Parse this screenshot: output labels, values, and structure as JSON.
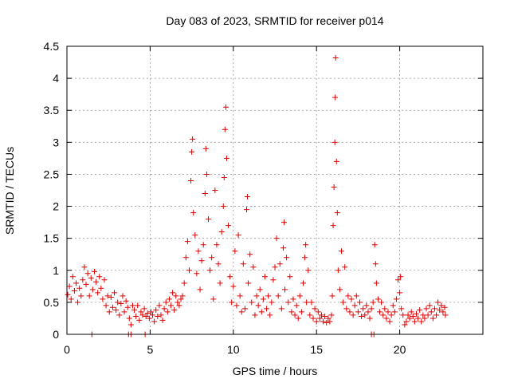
{
  "chart_data": {
    "type": "scatter",
    "title": "Day 083 of 2023, SRMTID for receiver p014",
    "xlabel": "GPS time / hours",
    "ylabel": "SRMTID / TECUs",
    "xlim": [
      0,
      25
    ],
    "ylim": [
      0,
      4.5
    ],
    "xticks": [
      0,
      5,
      10,
      15,
      20
    ],
    "yticks": [
      0,
      0.5,
      1,
      1.5,
      2,
      2.5,
      3,
      3.5,
      4,
      4.5
    ],
    "xtick_labels": [
      "0",
      "5",
      "10",
      "15",
      "20"
    ],
    "ytick_labels": [
      "0",
      "0.5",
      "1",
      "1.5",
      "2",
      "2.5",
      "3",
      "3.5",
      "4",
      "4.5"
    ],
    "grid": true,
    "marker": "+",
    "color": "#e00000",
    "series": [
      {
        "name": "SRMTID",
        "points": [
          [
            0.05,
            0.62
          ],
          [
            0.15,
            0.75
          ],
          [
            0.25,
            0.55
          ],
          [
            0.35,
            0.9
          ],
          [
            0.45,
            0.68
          ],
          [
            0.55,
            0.8
          ],
          [
            0.65,
            0.5
          ],
          [
            0.75,
            0.72
          ],
          [
            0.85,
            0.6
          ],
          [
            0.95,
            0.85
          ],
          [
            1.05,
            1.05
          ],
          [
            1.15,
            0.78
          ],
          [
            1.25,
            0.95
          ],
          [
            1.35,
            0.6
          ],
          [
            1.45,
            0.88
          ],
          [
            1.55,
            0.7
          ],
          [
            1.65,
            0.98
          ],
          [
            1.75,
            0.82
          ],
          [
            1.85,
            0.65
          ],
          [
            1.95,
            0.9
          ],
          [
            2.05,
            0.72
          ],
          [
            2.15,
            0.55
          ],
          [
            2.25,
            0.85
          ],
          [
            2.35,
            0.45
          ],
          [
            2.45,
            0.6
          ],
          [
            2.55,
            0.35
          ],
          [
            2.65,
            0.58
          ],
          [
            2.75,
            0.42
          ],
          [
            2.85,
            0.65
          ],
          [
            2.95,
            0.38
          ],
          [
            3.05,
            0.5
          ],
          [
            3.15,
            0.3
          ],
          [
            3.25,
            0.48
          ],
          [
            3.35,
            0.6
          ],
          [
            3.45,
            0.35
          ],
          [
            3.55,
            0.52
          ],
          [
            3.65,
            0.42
          ],
          [
            3.75,
            0.25
          ],
          [
            3.85,
            0.15
          ],
          [
            3.95,
            0.45
          ],
          [
            4.05,
            0.38
          ],
          [
            4.15,
            0.28
          ],
          [
            4.25,
            0.45
          ],
          [
            4.35,
            0.22
          ],
          [
            4.45,
            0.35
          ],
          [
            4.55,
            0.3
          ],
          [
            4.65,
            0.4
          ],
          [
            4.75,
            0.28
          ],
          [
            4.85,
            0.33
          ],
          [
            4.95,
            0.25
          ],
          [
            5.05,
            0.35
          ],
          [
            5.15,
            0.3
          ],
          [
            5.25,
            0.2
          ],
          [
            5.35,
            0.38
          ],
          [
            5.45,
            0.28
          ],
          [
            5.55,
            0.45
          ],
          [
            5.65,
            0.3
          ],
          [
            5.75,
            0.22
          ],
          [
            5.85,
            0.4
          ],
          [
            5.95,
            0.5
          ],
          [
            6.05,
            0.35
          ],
          [
            6.15,
            0.55
          ],
          [
            6.25,
            0.45
          ],
          [
            6.35,
            0.65
          ],
          [
            6.45,
            0.38
          ],
          [
            6.55,
            0.6
          ],
          [
            6.65,
            0.5
          ],
          [
            6.75,
            0.45
          ],
          [
            6.85,
            0.55
          ],
          [
            6.95,
            0.6
          ],
          [
            7.05,
            0.8
          ],
          [
            7.15,
            1.2
          ],
          [
            7.25,
            1.45
          ],
          [
            7.35,
            1.0
          ],
          [
            7.45,
            2.4
          ],
          [
            7.5,
            2.85
          ],
          [
            7.55,
            3.05
          ],
          [
            7.6,
            1.9
          ],
          [
            7.7,
            1.55
          ],
          [
            7.8,
            0.95
          ],
          [
            7.9,
            1.3
          ],
          [
            8.0,
            0.7
          ],
          [
            8.1,
            1.15
          ],
          [
            8.2,
            1.4
          ],
          [
            8.3,
            2.2
          ],
          [
            8.35,
            2.9
          ],
          [
            8.4,
            2.5
          ],
          [
            8.5,
            1.8
          ],
          [
            8.6,
            1.0
          ],
          [
            8.7,
            1.2
          ],
          [
            8.8,
            0.55
          ],
          [
            8.9,
            2.25
          ],
          [
            9.0,
            1.4
          ],
          [
            9.1,
            1.1
          ],
          [
            9.2,
            0.8
          ],
          [
            9.3,
            1.6
          ],
          [
            9.4,
            2.0
          ],
          [
            9.45,
            2.45
          ],
          [
            9.5,
            3.2
          ],
          [
            9.55,
            3.55
          ],
          [
            9.6,
            2.75
          ],
          [
            9.7,
            1.7
          ],
          [
            9.8,
            0.9
          ],
          [
            9.9,
            0.5
          ],
          [
            10.0,
            0.75
          ],
          [
            10.1,
            1.3
          ],
          [
            10.2,
            0.45
          ],
          [
            10.3,
            1.55
          ],
          [
            10.4,
            0.6
          ],
          [
            10.5,
            0.35
          ],
          [
            10.6,
            1.1
          ],
          [
            10.7,
            0.4
          ],
          [
            10.8,
            1.95
          ],
          [
            10.85,
            2.15
          ],
          [
            10.9,
            0.8
          ],
          [
            11.0,
            1.25
          ],
          [
            11.1,
            0.5
          ],
          [
            11.2,
            1.05
          ],
          [
            11.3,
            0.3
          ],
          [
            11.4,
            0.6
          ],
          [
            11.5,
            0.45
          ],
          [
            11.6,
            0.7
          ],
          [
            11.7,
            0.35
          ],
          [
            11.8,
            0.55
          ],
          [
            11.9,
            0.9
          ],
          [
            12.0,
            0.4
          ],
          [
            12.1,
            0.6
          ],
          [
            12.2,
            0.3
          ],
          [
            12.3,
            0.5
          ],
          [
            12.4,
            0.85
          ],
          [
            12.5,
            1.05
          ],
          [
            12.6,
            1.5
          ],
          [
            12.7,
            0.6
          ],
          [
            12.8,
            1.1
          ],
          [
            12.9,
            0.4
          ],
          [
            13.0,
            1.35
          ],
          [
            13.05,
            1.75
          ],
          [
            13.1,
            0.7
          ],
          [
            13.2,
            1.2
          ],
          [
            13.3,
            0.5
          ],
          [
            13.4,
            0.9
          ],
          [
            13.5,
            0.35
          ],
          [
            13.6,
            0.55
          ],
          [
            13.7,
            0.3
          ],
          [
            13.8,
            0.45
          ],
          [
            13.9,
            0.25
          ],
          [
            14.0,
            0.6
          ],
          [
            14.1,
            0.35
          ],
          [
            14.2,
            0.8
          ],
          [
            14.3,
            1.2
          ],
          [
            14.35,
            1.4
          ],
          [
            14.4,
            0.5
          ],
          [
            14.5,
            1.0
          ],
          [
            14.6,
            0.3
          ],
          [
            14.7,
            0.5
          ],
          [
            14.8,
            0.25
          ],
          [
            14.9,
            0.4
          ],
          [
            15.0,
            0.2
          ],
          [
            15.1,
            0.35
          ],
          [
            15.2,
            0.25
          ],
          [
            15.3,
            0.3
          ],
          [
            15.4,
            0.2
          ],
          [
            15.5,
            0.28
          ],
          [
            15.6,
            0.18
          ],
          [
            15.7,
            0.25
          ],
          [
            15.8,
            0.2
          ],
          [
            15.9,
            0.3
          ],
          [
            15.95,
            0.6
          ],
          [
            16.0,
            1.7
          ],
          [
            16.05,
            2.3
          ],
          [
            16.1,
            3.0
          ],
          [
            16.12,
            3.7
          ],
          [
            16.15,
            4.32
          ],
          [
            16.2,
            2.7
          ],
          [
            16.25,
            1.9
          ],
          [
            16.3,
            1.0
          ],
          [
            16.4,
            0.7
          ],
          [
            16.5,
            1.3
          ],
          [
            16.6,
            0.5
          ],
          [
            16.7,
            1.05
          ],
          [
            16.8,
            0.4
          ],
          [
            16.9,
            0.6
          ],
          [
            17.0,
            0.35
          ],
          [
            17.1,
            0.55
          ],
          [
            17.2,
            0.3
          ],
          [
            17.3,
            0.45
          ],
          [
            17.4,
            0.6
          ],
          [
            17.5,
            0.35
          ],
          [
            17.6,
            0.5
          ],
          [
            17.7,
            0.28
          ],
          [
            17.8,
            0.4
          ],
          [
            17.9,
            0.3
          ],
          [
            18.0,
            0.45
          ],
          [
            18.1,
            0.35
          ],
          [
            18.2,
            0.25
          ],
          [
            18.3,
            0.4
          ],
          [
            18.4,
            0.5
          ],
          [
            18.5,
            1.4
          ],
          [
            18.55,
            1.1
          ],
          [
            18.6,
            0.8
          ],
          [
            18.7,
            0.55
          ],
          [
            18.8,
            0.35
          ],
          [
            18.9,
            0.5
          ],
          [
            19.0,
            0.3
          ],
          [
            19.1,
            0.4
          ],
          [
            19.2,
            0.25
          ],
          [
            19.3,
            0.35
          ],
          [
            19.4,
            0.2
          ],
          [
            19.5,
            0.3
          ],
          [
            19.6,
            0.45
          ],
          [
            19.7,
            0.35
          ],
          [
            19.8,
            0.55
          ],
          [
            19.9,
            0.85
          ],
          [
            20.0,
            0.65
          ],
          [
            20.05,
            0.9
          ],
          [
            20.1,
            0.4
          ],
          [
            20.2,
            0.3
          ],
          [
            20.3,
            0.15
          ],
          [
            20.4,
            0.2
          ],
          [
            20.5,
            0.3
          ],
          [
            20.6,
            0.25
          ],
          [
            20.7,
            0.35
          ],
          [
            20.8,
            0.28
          ],
          [
            20.9,
            0.2
          ],
          [
            21.0,
            0.32
          ],
          [
            21.1,
            0.25
          ],
          [
            21.2,
            0.38
          ],
          [
            21.3,
            0.2
          ],
          [
            21.4,
            0.3
          ],
          [
            21.5,
            0.25
          ],
          [
            21.6,
            0.4
          ],
          [
            21.7,
            0.3
          ],
          [
            21.8,
            0.45
          ],
          [
            21.9,
            0.35
          ],
          [
            22.0,
            0.25
          ],
          [
            22.1,
            0.4
          ],
          [
            22.2,
            0.3
          ],
          [
            22.3,
            0.5
          ],
          [
            22.4,
            0.38
          ],
          [
            22.5,
            0.45
          ],
          [
            22.6,
            0.35
          ],
          [
            22.7,
            0.42
          ],
          [
            22.75,
            0.3
          ]
        ]
      }
    ],
    "zero_markers_x": [
      1.5,
      3.7,
      3.85,
      4.7,
      18.3,
      18.45
    ]
  }
}
